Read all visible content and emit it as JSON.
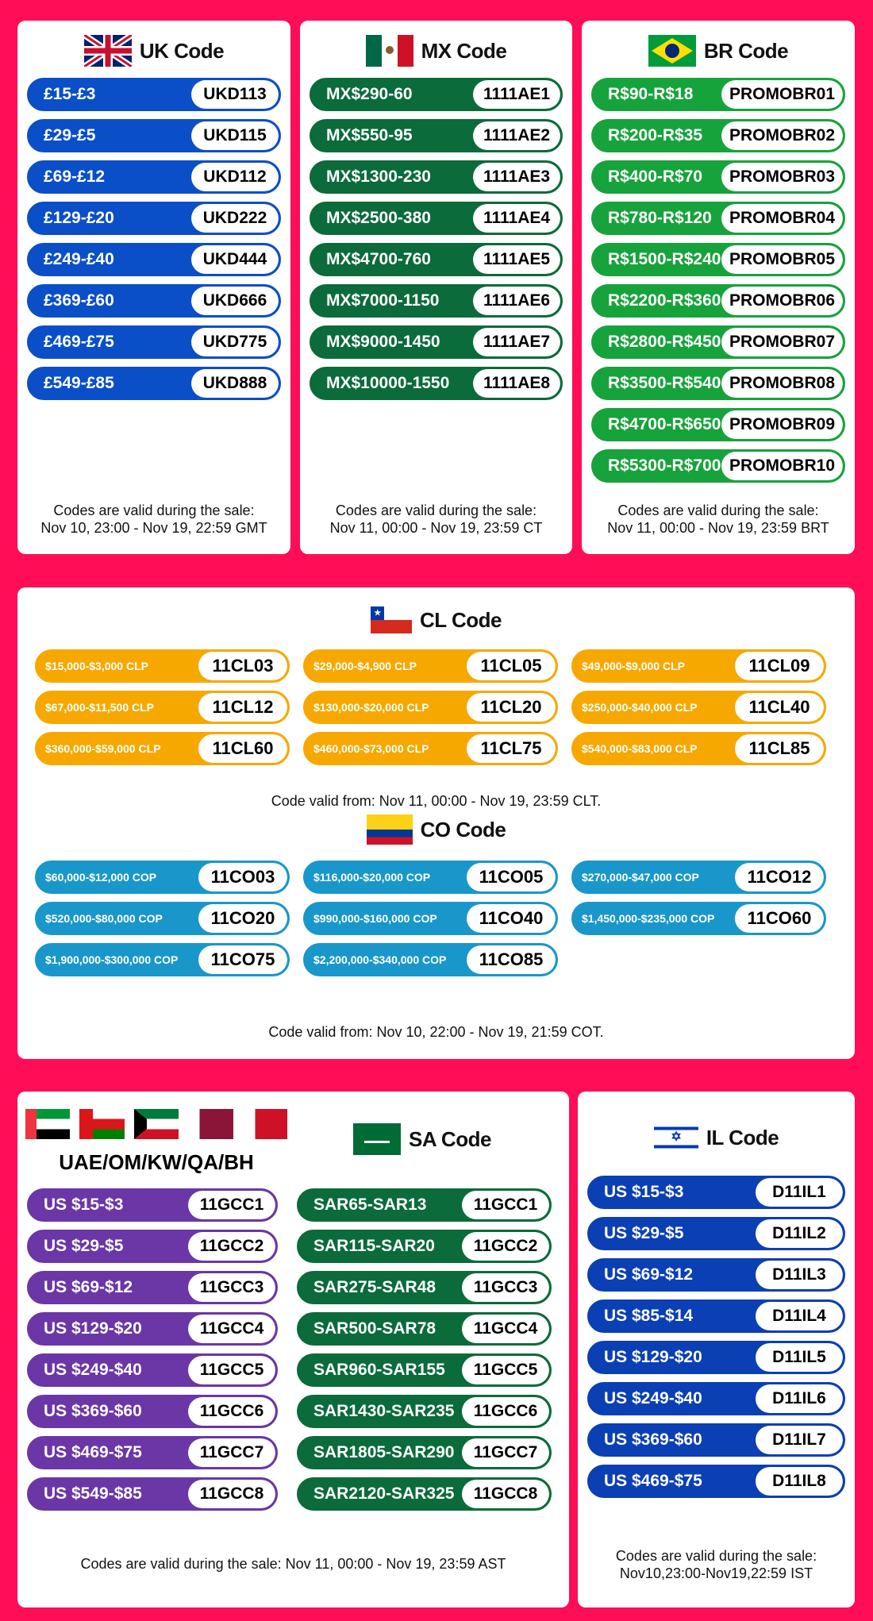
{
  "colors": {
    "background": "#ff0d57",
    "uk": "#0a4fc8",
    "mx": "#0b6b3a",
    "br": "#17a33c",
    "cl": "#f7a800",
    "co": "#1997cb",
    "gcc": "#6b36a6",
    "sa": "#0b6b3a",
    "il": "#0b3fb4"
  },
  "uk": {
    "title": "UK Code",
    "flag": "uk-flag-icon",
    "items": [
      [
        "£15-£3",
        "UKD113"
      ],
      [
        "£29-£5",
        "UKD115"
      ],
      [
        "£69-£12",
        "UKD112"
      ],
      [
        "£129-£20",
        "UKD222"
      ],
      [
        "£249-£40",
        "UKD444"
      ],
      [
        "£369-£60",
        "UKD666"
      ],
      [
        "£469-£75",
        "UKD775"
      ],
      [
        "£549-£85",
        "UKD888"
      ]
    ],
    "footer": "Codes are valid during the sale:\nNov 10, 23:00 - Nov 19, 22:59 GMT"
  },
  "mx": {
    "title": "MX Code",
    "flag": "mexico-flag-icon",
    "items": [
      [
        "MX$290-60",
        "1111AE1"
      ],
      [
        "MX$550-95",
        "1111AE2"
      ],
      [
        "MX$1300-230",
        "1111AE3"
      ],
      [
        "MX$2500-380",
        "1111AE4"
      ],
      [
        "MX$4700-760",
        "1111AE5"
      ],
      [
        "MX$7000-1150",
        "1111AE6"
      ],
      [
        "MX$9000-1450",
        "1111AE7"
      ],
      [
        "MX$10000-1550",
        "1111AE8"
      ]
    ],
    "footer": "Codes are valid during the sale:\nNov 11, 00:00 - Nov 19, 23:59 CT"
  },
  "br": {
    "title": "BR Code",
    "flag": "brazil-flag-icon",
    "items": [
      [
        "R$90-R$18",
        "PROMOBR01"
      ],
      [
        "R$200-R$35",
        "PROMOBR02"
      ],
      [
        "R$400-R$70",
        "PROMOBR03"
      ],
      [
        "R$780-R$120",
        "PROMOBR04"
      ],
      [
        "R$1500-R$240",
        "PROMOBR05"
      ],
      [
        "R$2200-R$360",
        "PROMOBR06"
      ],
      [
        "R$2800-R$450",
        "PROMOBR07"
      ],
      [
        "R$3500-R$540",
        "PROMOBR08"
      ],
      [
        "R$4700-R$650",
        "PROMOBR09"
      ],
      [
        "R$5300-R$700",
        "PROMOBR10"
      ]
    ],
    "footer": "Codes are valid during the sale:\nNov 11, 00:00 - Nov 19, 23:59 BRT"
  },
  "cl": {
    "title": "CL Code",
    "flag": "chile-flag-icon",
    "items": [
      [
        "$15,000-$3,000 CLP",
        "11CL03"
      ],
      [
        "$29,000-$4,900 CLP",
        "11CL05"
      ],
      [
        "$49,000-$9,000 CLP",
        "11CL09"
      ],
      [
        "$67,000-$11,500 CLP",
        "11CL12"
      ],
      [
        "$130,000-$20,000 CLP",
        "11CL20"
      ],
      [
        "$250,000-$40,000 CLP",
        "11CL40"
      ],
      [
        "$360,000-$59,000 CLP",
        "11CL60"
      ],
      [
        "$460,000-$73,000 CLP",
        "11CL75"
      ],
      [
        "$540,000-$83,000 CLP",
        "11CL85"
      ]
    ],
    "footer": "Code valid from: Nov 11, 00:00 - Nov 19, 23:59 CLT."
  },
  "co": {
    "title": "CO Code",
    "flag": "colombia-flag-icon",
    "items": [
      [
        "$60,000-$12,000 COP",
        "11CO03"
      ],
      [
        "$116,000-$20,000 COP",
        "11CO05"
      ],
      [
        "$270,000-$47,000 COP",
        "11CO12"
      ],
      [
        "$520,000-$80,000 COP",
        "11CO20"
      ],
      [
        "$990,000-$160,000 COP",
        "11CO40"
      ],
      [
        "$1,450,000-$235,000 COP",
        "11CO60"
      ],
      [
        "$1,900,000-$300,000 COP",
        "11CO75"
      ],
      [
        "$2,200,000-$340,000 COP",
        "11CO85"
      ]
    ],
    "footer": "Code valid from: Nov 10, 22:00 - Nov 19, 21:59 COT."
  },
  "gcc": {
    "title": "UAE/OM/KW/QA/BH",
    "flags": [
      "uae-flag-icon",
      "oman-flag-icon",
      "kuwait-flag-icon",
      "qatar-flag-icon",
      "bahrain-flag-icon"
    ],
    "items": [
      [
        "US $15-$3",
        "11GCC1"
      ],
      [
        "US $29-$5",
        "11GCC2"
      ],
      [
        "US $69-$12",
        "11GCC3"
      ],
      [
        "US $129-$20",
        "11GCC4"
      ],
      [
        "US $249-$40",
        "11GCC5"
      ],
      [
        "US $369-$60",
        "11GCC6"
      ],
      [
        "US $469-$75",
        "11GCC7"
      ],
      [
        "US $549-$85",
        "11GCC8"
      ]
    ]
  },
  "sa": {
    "title": "SA Code",
    "flag": "saudi-flag-icon",
    "items": [
      [
        "SAR65-SAR13",
        "11GCC1"
      ],
      [
        "SAR115-SAR20",
        "11GCC2"
      ],
      [
        "SAR275-SAR48",
        "11GCC3"
      ],
      [
        "SAR500-SAR78",
        "11GCC4"
      ],
      [
        "SAR960-SAR155",
        "11GCC5"
      ],
      [
        "SAR1430-SAR235",
        "11GCC6"
      ],
      [
        "SAR1805-SAR290",
        "11GCC7"
      ],
      [
        "SAR2120-SAR325",
        "11GCC8"
      ]
    ],
    "footer": "Codes are valid during the sale: Nov 11, 00:00 - Nov 19, 23:59 AST"
  },
  "il": {
    "title": "IL Code",
    "flag": "israel-flag-icon",
    "items": [
      [
        "US $15-$3",
        "D11IL1"
      ],
      [
        "US $29-$5",
        "D11IL2"
      ],
      [
        "US $69-$12",
        "D11IL3"
      ],
      [
        "US $85-$14",
        "D11IL4"
      ],
      [
        "US $129-$20",
        "D11IL5"
      ],
      [
        "US $249-$40",
        "D11IL6"
      ],
      [
        "US $369-$60",
        "D11IL7"
      ],
      [
        "US $469-$75",
        "D11IL8"
      ]
    ],
    "footer": "Codes are valid during the sale:\nNov10,23:00-Nov19,22:59 IST"
  }
}
